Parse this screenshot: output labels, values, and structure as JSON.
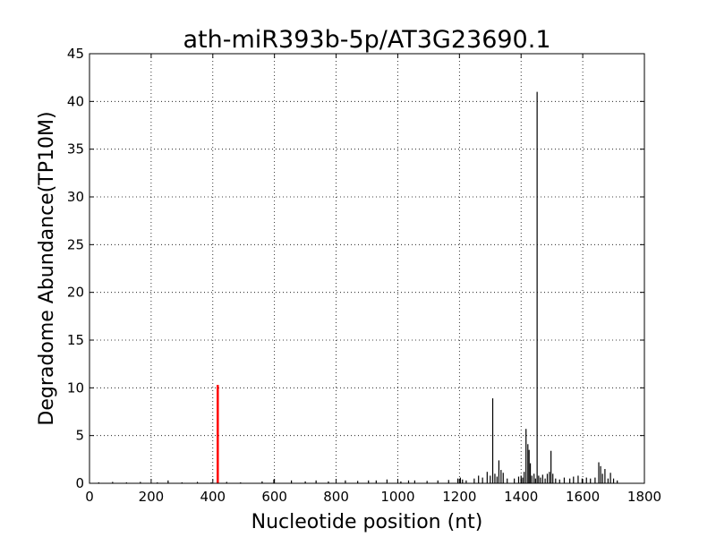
{
  "chart_data": {
    "type": "bar",
    "title": "ath-miR393b-5p/AT3G23690.1",
    "xlabel": "Nucleotide position (nt)",
    "ylabel": "Degradome Abundance(TP10M)",
    "xlim": [
      0,
      1800
    ],
    "ylim": [
      0,
      45
    ],
    "xticks": [
      "0",
      "200",
      "400",
      "600",
      "800",
      "1000",
      "1200",
      "1400",
      "1600",
      "1800"
    ],
    "yticks": [
      "0",
      "5",
      "10",
      "15",
      "20",
      "25",
      "30",
      "35",
      "40",
      "45"
    ],
    "grid": true,
    "series": [
      {
        "role": "background",
        "color": "#000000",
        "x": [
          30,
          75,
          120,
          165,
          220,
          255,
          300,
          350,
          395,
          445,
          490,
          560,
          598,
          655,
          700,
          735,
          775,
          830,
          870,
          905,
          930,
          965,
          1010,
          1035,
          1055,
          1095,
          1130,
          1165,
          1195,
          1203,
          1210,
          1222,
          1248,
          1262,
          1275,
          1290,
          1300,
          1308,
          1315,
          1322,
          1328,
          1335,
          1342,
          1355,
          1378,
          1392,
          1400,
          1405,
          1410,
          1416,
          1422,
          1426,
          1430,
          1435,
          1442,
          1447,
          1452,
          1457,
          1463,
          1470,
          1478,
          1485,
          1492,
          1497,
          1503,
          1512,
          1525,
          1540,
          1558,
          1570,
          1585,
          1598,
          1612,
          1625,
          1640,
          1652,
          1658,
          1664,
          1672,
          1682,
          1690,
          1700,
          1712
        ],
        "values": [
          0.1,
          0.15,
          0.1,
          0.15,
          0.1,
          0.3,
          0.1,
          0.15,
          0.1,
          0.15,
          0.1,
          0.2,
          0.4,
          0.3,
          0.2,
          0.3,
          0.2,
          0.3,
          0.25,
          0.3,
          0.3,
          0.4,
          0.2,
          0.3,
          0.3,
          0.25,
          0.3,
          0.35,
          0.5,
          0.6,
          0.4,
          0.3,
          0.5,
          0.8,
          0.6,
          1.2,
          0.8,
          8.9,
          1.0,
          0.7,
          2.4,
          1.4,
          1.1,
          0.5,
          0.5,
          0.7,
          0.8,
          0.6,
          1.2,
          5.7,
          4.1,
          3.5,
          2.1,
          0.8,
          1.0,
          0.5,
          41.0,
          0.8,
          0.6,
          0.9,
          0.5,
          1.0,
          1.2,
          3.4,
          1.0,
          0.5,
          0.4,
          0.6,
          0.5,
          0.7,
          0.8,
          0.5,
          0.6,
          0.5,
          0.6,
          2.2,
          1.8,
          1.0,
          1.5,
          0.5,
          1.1,
          0.5,
          0.3
        ]
      },
      {
        "role": "target-site",
        "color": "#ff0000",
        "x": [
          416
        ],
        "values": [
          10.3
        ]
      }
    ]
  }
}
